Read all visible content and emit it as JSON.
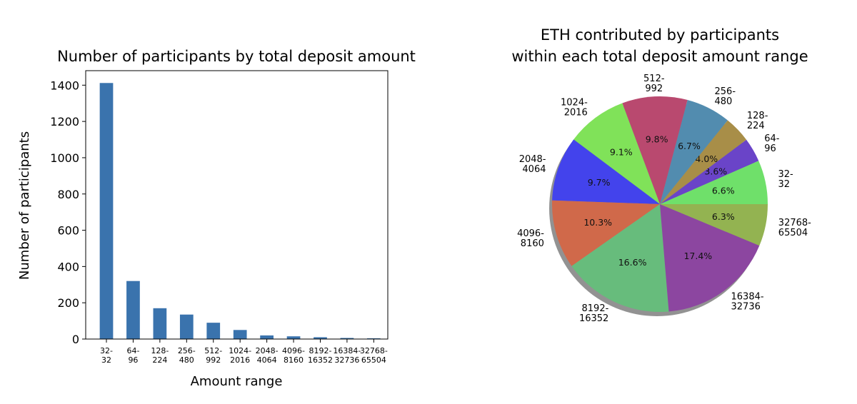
{
  "chart_data": [
    {
      "type": "bar",
      "title": "Number of participants by total deposit amount",
      "xlabel": "Amount range",
      "ylabel": "Number of participants",
      "ylim": [
        0,
        1480
      ],
      "yticks": [
        "0",
        "200",
        "400",
        "600",
        "800",
        "1000",
        "1200",
        "1400"
      ],
      "ytick_values": [
        0,
        200,
        400,
        600,
        800,
        1000,
        1200,
        1400
      ],
      "categories": [
        [
          "32-",
          "32"
        ],
        [
          "64-",
          "96"
        ],
        [
          "128-",
          "224"
        ],
        [
          "256-",
          "480"
        ],
        [
          "512-",
          "992"
        ],
        [
          "1024-",
          "2016"
        ],
        [
          "2048-",
          "4064"
        ],
        [
          "4096-",
          "8160"
        ],
        [
          "8192-",
          "16352"
        ],
        [
          "16384-",
          "32736"
        ],
        [
          "32768-",
          "65504"
        ]
      ],
      "values": [
        1412,
        320,
        170,
        135,
        90,
        50,
        20,
        15,
        10,
        6,
        4
      ],
      "bar_color": "#3a73ad",
      "grid": false
    },
    {
      "type": "pie",
      "title": [
        "ETH contributed by participants",
        "within each total deposit amount range"
      ],
      "slices": [
        {
          "label": [
            "32-",
            "32"
          ],
          "pct_label": "6.6%",
          "value": 6.6,
          "color": "#6fe06a"
        },
        {
          "label": [
            "64-",
            "96"
          ],
          "pct_label": "3.6%",
          "value": 3.6,
          "color": "#6a44c8"
        },
        {
          "label": [
            "128-",
            "224"
          ],
          "pct_label": "4.0%",
          "value": 4.0,
          "color": "#a88e48"
        },
        {
          "label": [
            "256-",
            "480"
          ],
          "pct_label": "6.7%",
          "value": 6.7,
          "color": "#528caf"
        },
        {
          "label": [
            "512-",
            "992"
          ],
          "pct_label": "9.8%",
          "value": 9.8,
          "color": "#b9496f"
        },
        {
          "label": [
            "1024-",
            "2016"
          ],
          "pct_label": "9.1%",
          "value": 9.1,
          "color": "#80e259"
        },
        {
          "label": [
            "2048-",
            "4064"
          ],
          "pct_label": "9.7%",
          "value": 9.7,
          "color": "#4343ec"
        },
        {
          "label": [
            "4096-",
            "8160"
          ],
          "pct_label": "10.3%",
          "value": 10.3,
          "color": "#d0694a"
        },
        {
          "label": [
            "8192-",
            "16352"
          ],
          "pct_label": "16.6%",
          "value": 16.6,
          "color": "#67bc7c"
        },
        {
          "label": [
            "16384-",
            "32736"
          ],
          "pct_label": "17.4%",
          "value": 17.4,
          "color": "#8c46a0"
        },
        {
          "label": [
            "32768-",
            "65504"
          ],
          "pct_label": "6.3%",
          "value": 6.3,
          "color": "#93b351"
        }
      ],
      "start_angle_deg": 0,
      "direction": "counterclockwise",
      "shadow": true
    }
  ]
}
